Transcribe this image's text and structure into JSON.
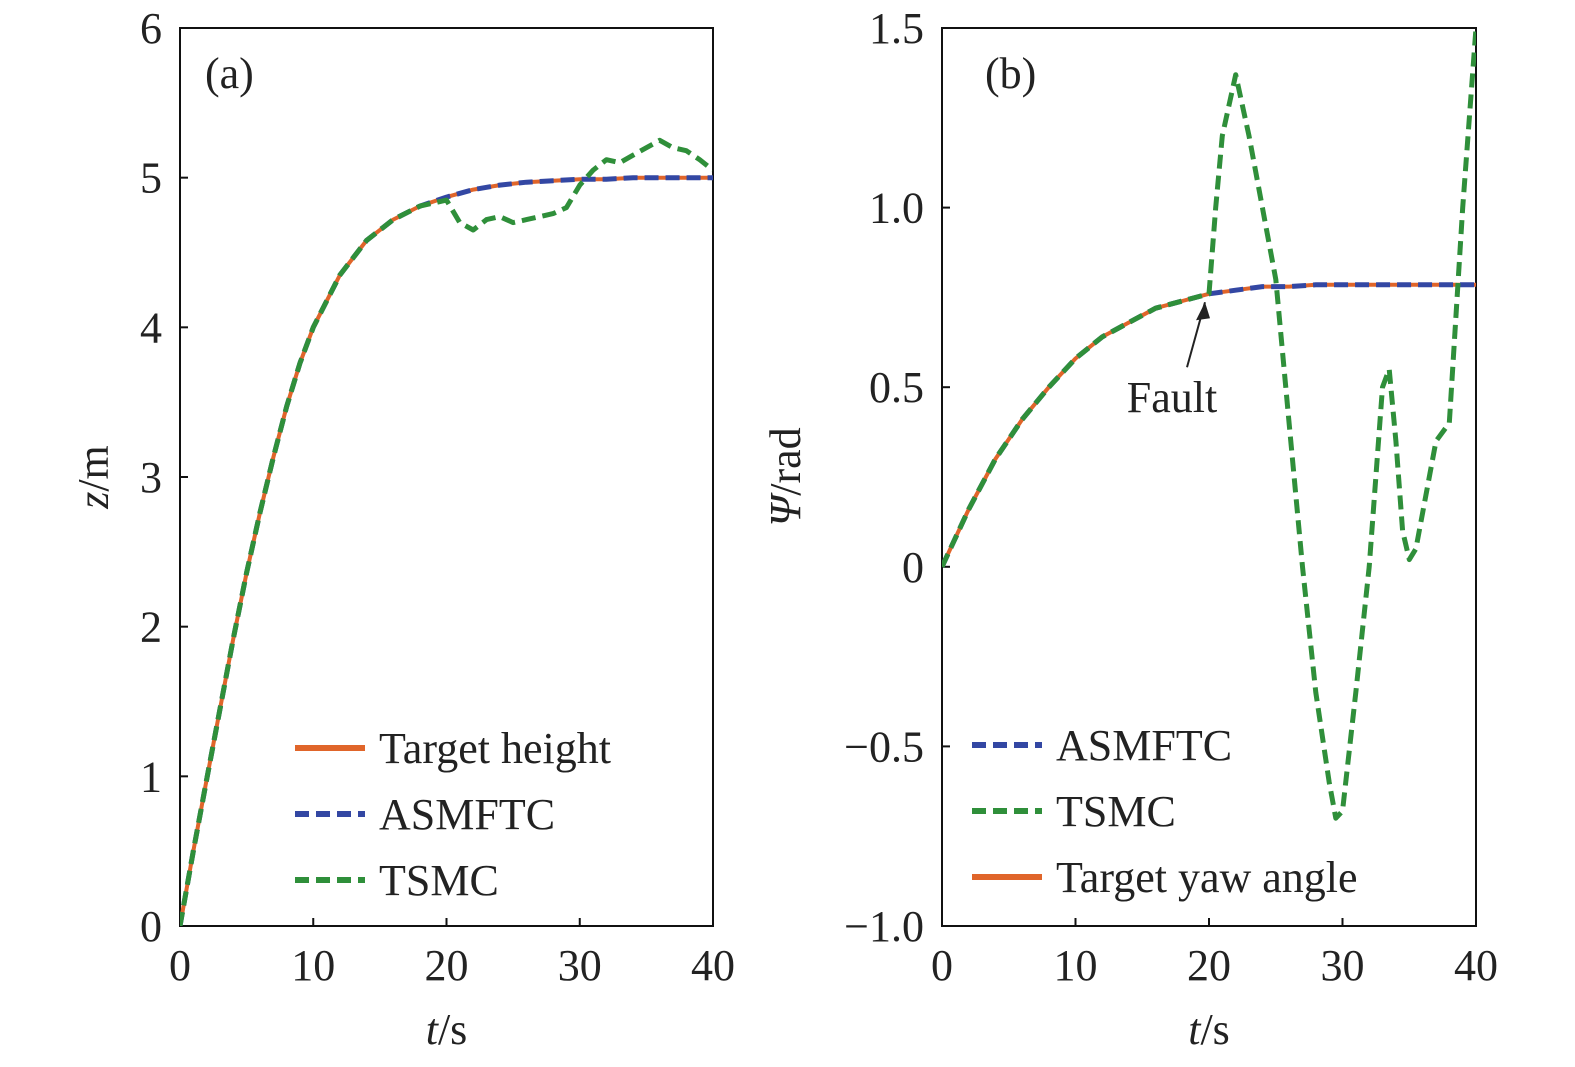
{
  "chart_data": [
    {
      "type": "line",
      "panel_tag": "(a)",
      "xlabel_italic": "t",
      "xlabel_unit": "/s",
      "ylabel_italic": "z",
      "ylabel_unit": "/m",
      "xlim": [
        0,
        40
      ],
      "ylim": [
        0,
        6
      ],
      "xticks": [
        "0",
        "10",
        "20",
        "30",
        "40"
      ],
      "yticks": [
        "0",
        "1",
        "2",
        "3",
        "4",
        "5",
        "6"
      ],
      "grid": false,
      "legend_position": "bottom-right",
      "series": [
        {
          "name": "Target height",
          "color": "#e0652a",
          "style": "solid",
          "x": [
            0,
            1,
            2,
            3,
            4,
            5,
            6,
            7,
            8,
            9,
            10,
            12,
            14,
            16,
            18,
            20,
            22,
            24,
            26,
            28,
            30,
            32,
            34,
            36,
            38,
            40
          ],
          "y": [
            0,
            0.5,
            0.98,
            1.45,
            1.92,
            2.36,
            2.76,
            3.13,
            3.47,
            3.76,
            4.0,
            4.35,
            4.58,
            4.72,
            4.81,
            4.87,
            4.92,
            4.95,
            4.97,
            4.98,
            4.99,
            4.99,
            5.0,
            5.0,
            5.0,
            5.0
          ]
        },
        {
          "name": "ASMFTC",
          "color": "#3347a3",
          "style": "dashed",
          "x": [
            0,
            1,
            2,
            3,
            4,
            5,
            6,
            7,
            8,
            9,
            10,
            12,
            14,
            16,
            18,
            20,
            22,
            24,
            26,
            28,
            30,
            32,
            34,
            36,
            38,
            40
          ],
          "y": [
            0,
            0.5,
            0.98,
            1.45,
            1.92,
            2.36,
            2.76,
            3.13,
            3.47,
            3.76,
            4.0,
            4.35,
            4.58,
            4.72,
            4.81,
            4.87,
            4.92,
            4.95,
            4.97,
            4.98,
            4.99,
            4.99,
            5.0,
            5.0,
            5.0,
            5.0
          ]
        },
        {
          "name": "TSMC",
          "color": "#2f8f3a",
          "style": "dashed",
          "x": [
            0,
            1,
            2,
            3,
            4,
            5,
            6,
            7,
            8,
            9,
            10,
            12,
            14,
            16,
            18,
            20,
            21,
            22,
            23,
            24,
            25,
            26,
            27,
            28,
            29,
            30,
            31,
            32,
            33,
            34,
            35,
            36,
            37,
            38,
            39,
            40
          ],
          "y": [
            0,
            0.5,
            0.98,
            1.45,
            1.92,
            2.36,
            2.76,
            3.13,
            3.47,
            3.76,
            4.0,
            4.35,
            4.58,
            4.72,
            4.81,
            4.85,
            4.7,
            4.65,
            4.72,
            4.74,
            4.7,
            4.72,
            4.74,
            4.76,
            4.8,
            4.95,
            5.05,
            5.12,
            5.1,
            5.15,
            5.2,
            5.25,
            5.2,
            5.18,
            5.12,
            5.05
          ]
        }
      ]
    },
    {
      "type": "line",
      "panel_tag": "(b)",
      "xlabel_italic": "t",
      "xlabel_unit": "/s",
      "ylabel_italic": "Ψ",
      "ylabel_unit": "/rad",
      "xlim": [
        0,
        40
      ],
      "ylim": [
        -1.0,
        1.5
      ],
      "xticks": [
        "0",
        "10",
        "20",
        "30",
        "40"
      ],
      "yticks": [
        "−1.0",
        "−0.5",
        "0",
        "0.5",
        "1.0",
        "1.5"
      ],
      "ytick_values": [
        -1.0,
        -0.5,
        0,
        0.5,
        1.0,
        1.5
      ],
      "grid": false,
      "legend_position": "bottom-left",
      "annotation": {
        "text": "Fault",
        "x": 20,
        "y": 0.77
      },
      "series": [
        {
          "name": "ASMFTC",
          "color": "#3347a3",
          "style": "dashed",
          "x": [
            0,
            2,
            4,
            6,
            8,
            10,
            12,
            14,
            16,
            18,
            20,
            22,
            24,
            26,
            28,
            30,
            32,
            34,
            36,
            38,
            40
          ],
          "y": [
            0,
            0.16,
            0.3,
            0.41,
            0.5,
            0.58,
            0.64,
            0.68,
            0.72,
            0.74,
            0.76,
            0.77,
            0.78,
            0.78,
            0.785,
            0.785,
            0.785,
            0.785,
            0.785,
            0.785,
            0.785
          ]
        },
        {
          "name": "TSMC",
          "color": "#2f8f3a",
          "style": "dashed",
          "x": [
            0,
            2,
            4,
            6,
            8,
            10,
            12,
            14,
            16,
            18,
            20,
            20.5,
            21,
            22,
            23,
            24,
            25,
            26,
            27,
            28,
            29,
            29.5,
            30,
            31,
            32,
            33,
            33.5,
            34,
            34.5,
            35,
            35.5,
            36,
            37,
            38,
            39,
            40
          ],
          "y": [
            0,
            0.16,
            0.3,
            0.41,
            0.5,
            0.58,
            0.64,
            0.68,
            0.72,
            0.74,
            0.76,
            1.0,
            1.2,
            1.37,
            1.2,
            1.0,
            0.8,
            0.4,
            0.0,
            -0.35,
            -0.6,
            -0.7,
            -0.68,
            -0.35,
            0.0,
            0.5,
            0.55,
            0.35,
            0.1,
            0.02,
            0.05,
            0.15,
            0.35,
            0.4,
            1.0,
            1.5
          ]
        },
        {
          "name": "Target yaw angle",
          "color": "#e0652a",
          "style": "solid",
          "x": [
            0,
            2,
            4,
            6,
            8,
            10,
            12,
            14,
            16,
            18,
            20,
            22,
            24,
            26,
            28,
            30,
            32,
            34,
            36,
            38,
            40
          ],
          "y": [
            0,
            0.16,
            0.3,
            0.41,
            0.5,
            0.58,
            0.64,
            0.68,
            0.72,
            0.74,
            0.76,
            0.77,
            0.78,
            0.78,
            0.785,
            0.785,
            0.785,
            0.785,
            0.785,
            0.785,
            0.785
          ]
        }
      ]
    }
  ]
}
